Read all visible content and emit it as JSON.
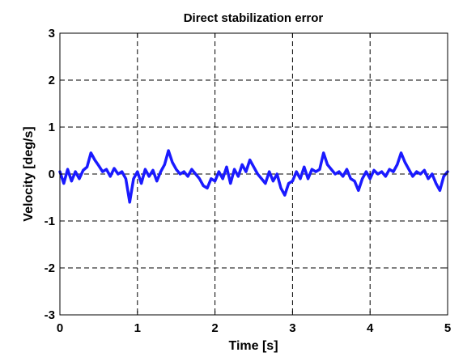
{
  "chart_data": {
    "type": "line",
    "title": "Direct stabilization error",
    "xlabel": "Time [s]",
    "ylabel": "Velocity [deg/s]",
    "xlim": [
      0,
      5
    ],
    "ylim": [
      -3,
      3
    ],
    "x_ticks": [
      0,
      1,
      2,
      3,
      4,
      5
    ],
    "x_tick_labels": [
      "0",
      "1",
      "2",
      "3",
      "4",
      "5"
    ],
    "y_ticks": [
      -3,
      -2,
      -1,
      0,
      1,
      2,
      3
    ],
    "y_tick_labels": [
      "-3",
      "-2",
      "-1",
      "0",
      "1",
      "2",
      "3"
    ],
    "grid": true,
    "grid_style": "dashed",
    "legend": "none",
    "colors": {
      "series": "#1a1aff",
      "axes": "#000000",
      "grid": "#000000",
      "background": "#ffffff"
    },
    "series": [
      {
        "x": [
          0.0,
          0.05,
          0.1,
          0.15,
          0.2,
          0.25,
          0.3,
          0.35,
          0.4,
          0.45,
          0.5,
          0.55,
          0.6,
          0.65,
          0.7,
          0.75,
          0.8,
          0.85,
          0.9,
          0.95,
          1.0,
          1.05,
          1.1,
          1.15,
          1.2,
          1.25,
          1.3,
          1.35,
          1.4,
          1.45,
          1.5,
          1.55,
          1.6,
          1.65,
          1.7,
          1.75,
          1.8,
          1.85,
          1.9,
          1.95,
          2.0,
          2.05,
          2.1,
          2.15,
          2.2,
          2.25,
          2.3,
          2.35,
          2.4,
          2.45,
          2.5,
          2.55,
          2.6,
          2.65,
          2.7,
          2.75,
          2.8,
          2.85,
          2.9,
          2.95,
          3.0,
          3.05,
          3.1,
          3.15,
          3.2,
          3.25,
          3.3,
          3.35,
          3.4,
          3.45,
          3.5,
          3.55,
          3.6,
          3.65,
          3.7,
          3.75,
          3.8,
          3.85,
          3.9,
          3.95,
          4.0,
          4.05,
          4.1,
          4.15,
          4.2,
          4.25,
          4.3,
          4.35,
          4.4,
          4.45,
          4.5,
          4.55,
          4.6,
          4.65,
          4.7,
          4.75,
          4.8,
          4.85,
          4.9,
          4.95,
          5.0
        ],
        "y": [
          0.05,
          -0.2,
          0.1,
          -0.15,
          0.05,
          -0.1,
          0.08,
          0.15,
          0.45,
          0.3,
          0.18,
          0.05,
          0.1,
          -0.05,
          0.12,
          0.0,
          0.05,
          -0.1,
          -0.6,
          -0.1,
          0.05,
          -0.2,
          0.1,
          -0.05,
          0.08,
          -0.15,
          0.05,
          0.2,
          0.5,
          0.25,
          0.1,
          0.0,
          0.05,
          -0.05,
          0.1,
          0.0,
          -0.1,
          -0.25,
          -0.3,
          -0.1,
          -0.15,
          0.05,
          -0.1,
          0.15,
          -0.2,
          0.1,
          -0.05,
          0.2,
          0.05,
          0.3,
          0.15,
          0.0,
          -0.1,
          -0.2,
          0.05,
          -0.15,
          0.0,
          -0.3,
          -0.45,
          -0.2,
          -0.15,
          0.05,
          -0.1,
          0.15,
          -0.1,
          0.1,
          0.05,
          0.1,
          0.45,
          0.2,
          0.1,
          0.0,
          0.05,
          -0.05,
          0.1,
          -0.1,
          -0.15,
          -0.35,
          -0.1,
          0.05,
          -0.1,
          0.08,
          0.0,
          0.05,
          -0.05,
          0.1,
          0.05,
          0.2,
          0.45,
          0.25,
          0.1,
          -0.05,
          0.05,
          0.0,
          0.08,
          -0.1,
          0.0,
          -0.2,
          -0.35,
          -0.05,
          0.05
        ]
      }
    ]
  }
}
